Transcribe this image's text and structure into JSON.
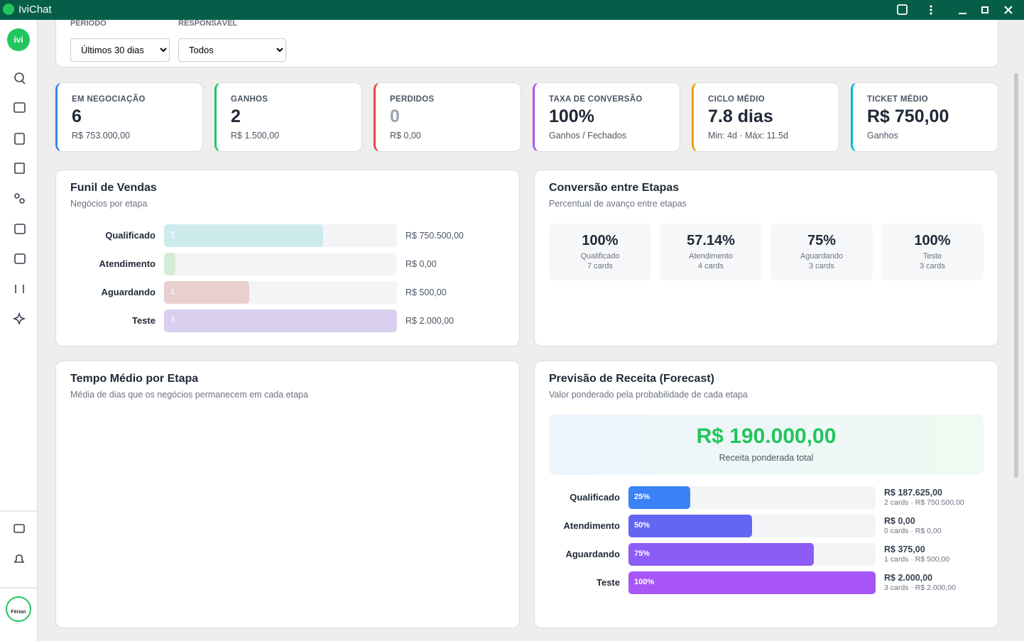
{
  "window": {
    "title": "IviChat"
  },
  "filters": [
    {
      "label": "PERÍODO",
      "value": "Últimos 30 dias"
    },
    {
      "label": "RESPONSÁVEL",
      "value": "Todos"
    }
  ],
  "kpis": [
    {
      "label": "EM NEGOCIAÇÃO",
      "value": "6",
      "sub": "R$ 753.000,00",
      "color": "#3b82f6"
    },
    {
      "label": "GANHOS",
      "value": "2",
      "sub": "R$ 1.500,00",
      "color": "#22c55e"
    },
    {
      "label": "PERDIDOS",
      "value": "0",
      "sub": "R$ 0,00",
      "color": "#ef4444"
    },
    {
      "label": "TAXA DE CONVERSÃO",
      "value": "100%",
      "sub": "Ganhos / Fechados",
      "color": "#a855f7"
    },
    {
      "label": "CICLO MÉDIO",
      "value": "7.8 dias",
      "sub": "Min: 4d · Máx: 11.5d",
      "color": "#f59e0b"
    },
    {
      "label": "TICKET MÉDIO",
      "value": "R$ 750,00",
      "sub": "Ganhos",
      "color": "#06b6d4"
    }
  ],
  "funnel": {
    "title": "Funil de Vendas",
    "subtitle": "Negócios por etapa",
    "stages": [
      {
        "name": "Qualificado",
        "count": 2,
        "count_label": "2",
        "amount": "R$ 750.500,00",
        "color": "#cdeaec"
      },
      {
        "name": "Atendimento",
        "count": 0,
        "amount": "R$ 0,00",
        "color": "#d3ecd3"
      },
      {
        "name": "Aguardando",
        "count": 1,
        "count_label": "1",
        "amount": "R$ 500,00",
        "color": "#eacfcf"
      },
      {
        "name": "Teste",
        "count": 3,
        "count_label": "3",
        "amount": "R$ 2.000,00",
        "color": "#d8d0ee"
      }
    ]
  },
  "conversion": {
    "title": "Conversão entre Etapas",
    "subtitle": "Percentual de avanço entre etapas",
    "stages": [
      {
        "rate": "100%",
        "name": "Qualificado",
        "cards": "7 cards"
      },
      {
        "rate": "57.14%",
        "name": "Atendimento",
        "cards": "4 cards"
      },
      {
        "rate": "75%",
        "name": "Aguardando",
        "cards": "3 cards"
      },
      {
        "rate": "100%",
        "name": "Teste",
        "cards": "3 cards"
      }
    ]
  },
  "time": {
    "title": "Tempo Médio por Etapa",
    "subtitle": "Média de dias que os negócios permanecem em cada etapa"
  },
  "forecast": {
    "title": "Previsão de Receita (Forecast)",
    "subtitle": "Valor ponderado pela probabilidade de cada etapa",
    "total": "R$ 190.000,00",
    "total_label": "Receita ponderada total",
    "stages": [
      {
        "name": "Qualificado",
        "percent": {
          "value": 25,
          "label": "25%"
        },
        "amount": "R$ 187.625,00",
        "detail": "2 cards · R$ 750.500,00",
        "color": "#3b82f6"
      },
      {
        "name": "Atendimento",
        "percent": {
          "value": 50,
          "label": "50%"
        },
        "amount": "R$ 0,00",
        "detail": "0 cards · R$ 0,00",
        "color": "#6366f1"
      },
      {
        "name": "Aguardando",
        "percent": {
          "value": 75,
          "label": "75%"
        },
        "amount": "R$ 375,00",
        "detail": "1 cards · R$ 500,00",
        "color": "#8b5cf6"
      },
      {
        "name": "Teste",
        "percent": {
          "value": 100,
          "label": "100%"
        },
        "amount": "R$ 2.000,00",
        "detail": "3 cards · R$ 2.000,00",
        "color": "#a855f7"
      }
    ]
  },
  "sidebar": {
    "logo": "ivi",
    "footer_logo": "Férion"
  }
}
